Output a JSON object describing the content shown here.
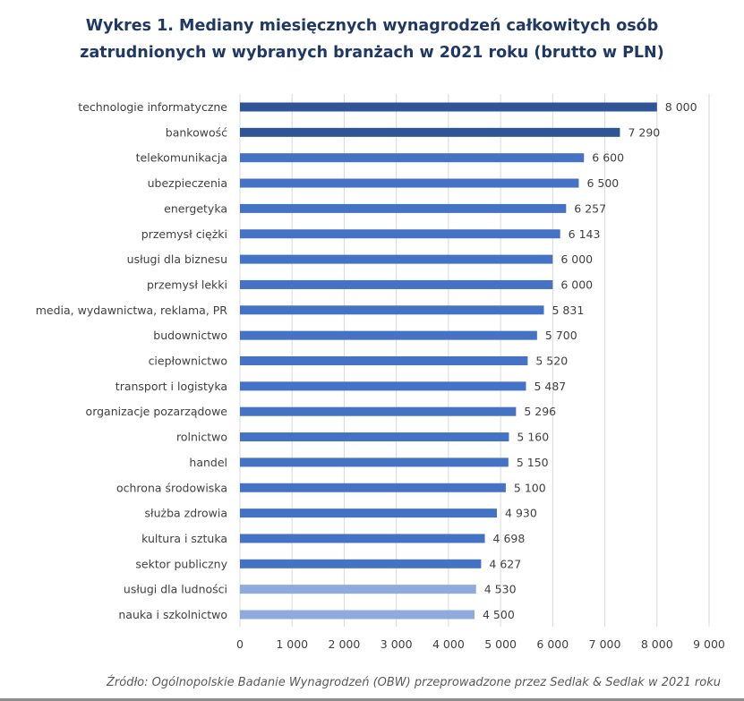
{
  "chart_data": {
    "type": "bar",
    "orientation": "horizontal",
    "title": "Wykres 1. Mediany miesięcznych wynagrodzeń całkowitych osób zatrudnionych w wybranych branżach w 2021 roku (brutto w PLN)",
    "title_lines": [
      "Wykres 1. Mediany miesięcznych wynagrodzeń całkowitych osób",
      "zatrudnionych w wybranych branżach w 2021 roku (brutto w PLN)"
    ],
    "categories": [
      "technologie informatyczne",
      "bankowość",
      "telekomunikacja",
      "ubezpieczenia",
      "energetyka",
      "przemysł ciężki",
      "usługi dla biznesu",
      "przemysł lekki",
      "media, wydawnictwa, reklama, PR",
      "budownictwo",
      "ciepłownictwo",
      "transport i logistyka",
      "organizacje pozarządowe",
      "rolnictwo",
      "handel",
      "ochrona środowiska",
      "służba zdrowia",
      "kultura i sztuka",
      "sektor publiczny",
      "usługi dla ludności",
      "nauka i szkolnictwo"
    ],
    "values": [
      8000,
      7290,
      6600,
      6500,
      6257,
      6143,
      6000,
      6000,
      5831,
      5700,
      5520,
      5487,
      5296,
      5160,
      5150,
      5100,
      4930,
      4698,
      4627,
      4530,
      4500
    ],
    "data_labels": [
      "8 000",
      "7 290",
      "6 600",
      "6 500",
      "6 257",
      "6 143",
      "6 000",
      "6 000",
      "5 831",
      "5 700",
      "5 520",
      "5 487",
      "5 296",
      "5 160",
      "5 150",
      "5 100",
      "4 930",
      "4 698",
      "4 627",
      "4 530",
      "4 500"
    ],
    "bar_color_groups": [
      "dark",
      "dark",
      "mid",
      "mid",
      "mid",
      "mid",
      "mid",
      "mid",
      "mid",
      "mid",
      "mid",
      "mid",
      "mid",
      "mid",
      "mid",
      "mid",
      "mid",
      "mid",
      "mid",
      "light",
      "light"
    ],
    "colors": {
      "dark": "#2F5597",
      "mid": "#4472C4",
      "light": "#8FAADC",
      "title": "#1F3864",
      "grid": "#D9D9D9"
    },
    "xlim": [
      0,
      9000
    ],
    "xticks": [
      0,
      1000,
      2000,
      3000,
      4000,
      5000,
      6000,
      7000,
      8000,
      9000
    ],
    "xtick_labels": [
      "0",
      "1 000",
      "2 000",
      "3 000",
      "4 000",
      "5 000",
      "6 000",
      "7 000",
      "8 000",
      "9 000"
    ],
    "grid": "vertical",
    "xlabel": "",
    "ylabel": "",
    "source": "Źródło: Ogólnopolskie Badanie Wynagrodzeń (OBW) przeprowadzone przez Sedlak & Sedlak w 2021 roku"
  }
}
